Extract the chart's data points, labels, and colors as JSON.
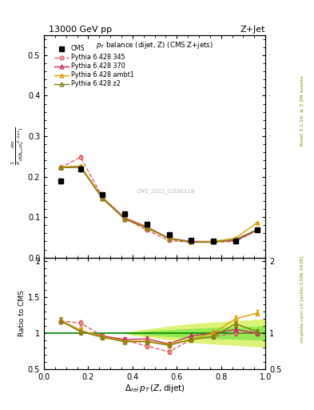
{
  "title_left": "13000 GeV pp",
  "title_right": "Z+Jet",
  "subplot_title": "p_{T} balance (dijet, Z) (CMS Z+jets)",
  "watermark": "CMS_2021_I1956118",
  "x_cms": [
    0.075,
    0.165,
    0.265,
    0.365,
    0.465,
    0.565,
    0.665,
    0.765,
    0.865,
    0.965
  ],
  "y_cms": [
    0.19,
    0.218,
    0.155,
    0.108,
    0.083,
    0.057,
    0.042,
    0.04,
    0.04,
    0.068
  ],
  "y_cms_err": [
    0.006,
    0.005,
    0.004,
    0.003,
    0.002,
    0.002,
    0.002,
    0.002,
    0.002,
    0.003
  ],
  "x_py": [
    0.075,
    0.165,
    0.265,
    0.365,
    0.465,
    0.565,
    0.665,
    0.765,
    0.865,
    0.965
  ],
  "y_py345": [
    0.222,
    0.248,
    0.149,
    0.097,
    0.068,
    0.042,
    0.038,
    0.038,
    0.04,
    0.068
  ],
  "y_py345_err": [
    0.003,
    0.003,
    0.002,
    0.002,
    0.002,
    0.001,
    0.001,
    0.001,
    0.001,
    0.002
  ],
  "y_py370": [
    0.222,
    0.225,
    0.148,
    0.098,
    0.076,
    0.048,
    0.04,
    0.04,
    0.042,
    0.068
  ],
  "y_py370_err": [
    0.003,
    0.003,
    0.002,
    0.002,
    0.002,
    0.001,
    0.001,
    0.001,
    0.001,
    0.002
  ],
  "y_pyambt1": [
    0.224,
    0.226,
    0.147,
    0.096,
    0.074,
    0.048,
    0.038,
    0.04,
    0.048,
    0.087
  ],
  "y_pyambt1_err": [
    0.003,
    0.003,
    0.002,
    0.002,
    0.002,
    0.001,
    0.001,
    0.001,
    0.001,
    0.002
  ],
  "y_pyz2": [
    0.222,
    0.223,
    0.145,
    0.095,
    0.073,
    0.047,
    0.038,
    0.038,
    0.045,
    0.07
  ],
  "y_pyz2_err": [
    0.003,
    0.003,
    0.002,
    0.002,
    0.002,
    0.001,
    0.001,
    0.001,
    0.001,
    0.002
  ],
  "ratio_py345": [
    1.17,
    1.14,
    0.96,
    0.9,
    0.82,
    0.74,
    0.91,
    0.95,
    1.0,
    1.0
  ],
  "ratio_py345_err": [
    0.04,
    0.04,
    0.03,
    0.03,
    0.03,
    0.03,
    0.03,
    0.03,
    0.03,
    0.03
  ],
  "ratio_py370": [
    1.17,
    1.03,
    0.96,
    0.91,
    0.92,
    0.85,
    0.96,
    1.0,
    1.05,
    1.0
  ],
  "ratio_py370_err": [
    0.04,
    0.04,
    0.03,
    0.03,
    0.03,
    0.03,
    0.03,
    0.03,
    0.03,
    0.03
  ],
  "ratio_pyambt1": [
    1.18,
    1.04,
    0.95,
    0.89,
    0.89,
    0.84,
    0.91,
    1.0,
    1.2,
    1.28
  ],
  "ratio_pyambt1_err": [
    0.04,
    0.04,
    0.03,
    0.03,
    0.03,
    0.03,
    0.03,
    0.03,
    0.04,
    0.04
  ],
  "ratio_pyz2": [
    1.17,
    1.02,
    0.94,
    0.88,
    0.88,
    0.83,
    0.91,
    0.95,
    1.13,
    1.02
  ],
  "ratio_pyz2_err": [
    0.04,
    0.04,
    0.03,
    0.03,
    0.03,
    0.03,
    0.03,
    0.03,
    0.04,
    0.03
  ],
  "color_cms": "#000000",
  "color_py345": "#e06060",
  "color_py370": "#c03060",
  "color_pyambt1": "#e0a000",
  "color_pyz2": "#808010",
  "band_inner_color": "#90e850",
  "band_outer_color": "#d8f060",
  "ylim_main": [
    0.0,
    0.55
  ],
  "ylim_ratio": [
    0.5,
    2.05
  ],
  "xlim": [
    0.0,
    1.0
  ]
}
